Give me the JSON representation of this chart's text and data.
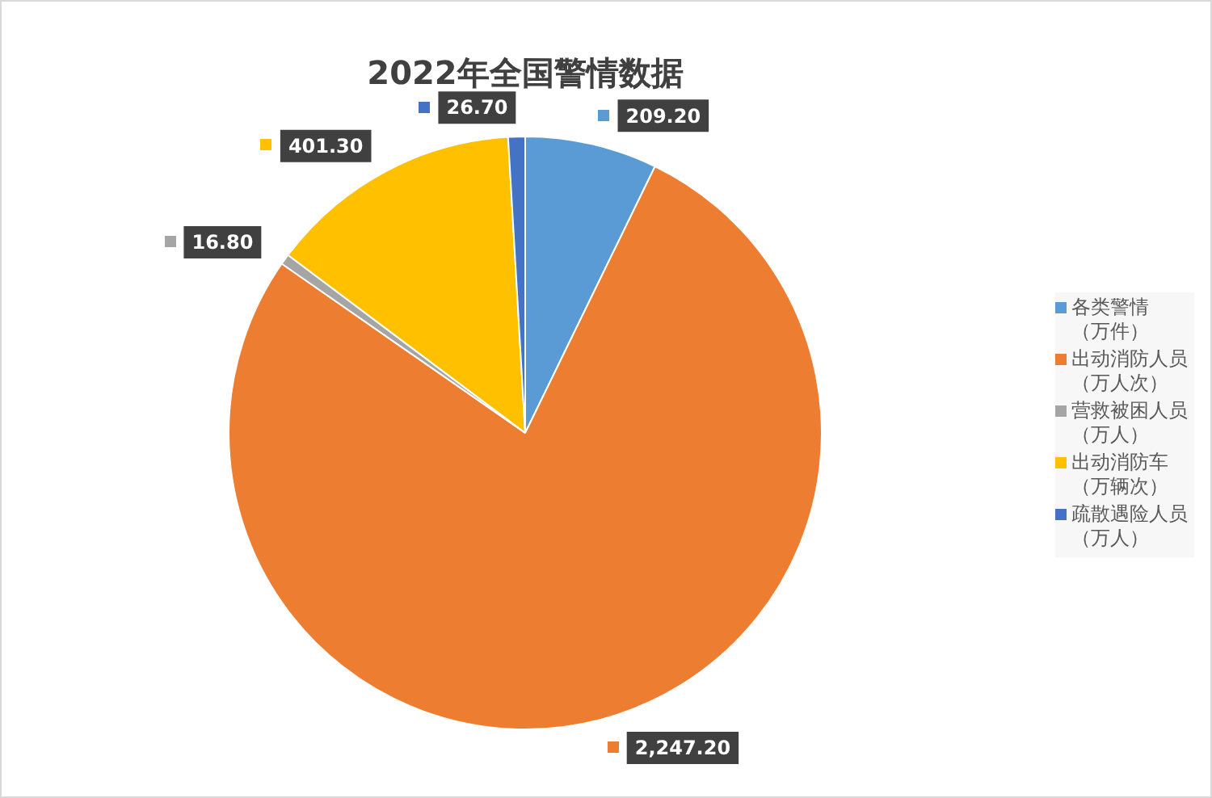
{
  "chart_data": {
    "type": "pie",
    "title": "2022年全国警情数据",
    "categories": [
      "各类警情（万件）",
      "出动消防人员（万人次）",
      "营救被困人员（万人）",
      "出动消防车（万辆次）",
      "疏散遇险人员（万人）"
    ],
    "values": [
      209.2,
      2247.2,
      16.8,
      401.3,
      26.7
    ],
    "colors": [
      "#5b9bd5",
      "#ed7d31",
      "#a5a5a5",
      "#ffc000",
      "#4472c4"
    ],
    "value_labels": [
      "209.20",
      "2,247.20",
      "16.80",
      "401.30",
      "26.70"
    ],
    "legend": "right"
  }
}
